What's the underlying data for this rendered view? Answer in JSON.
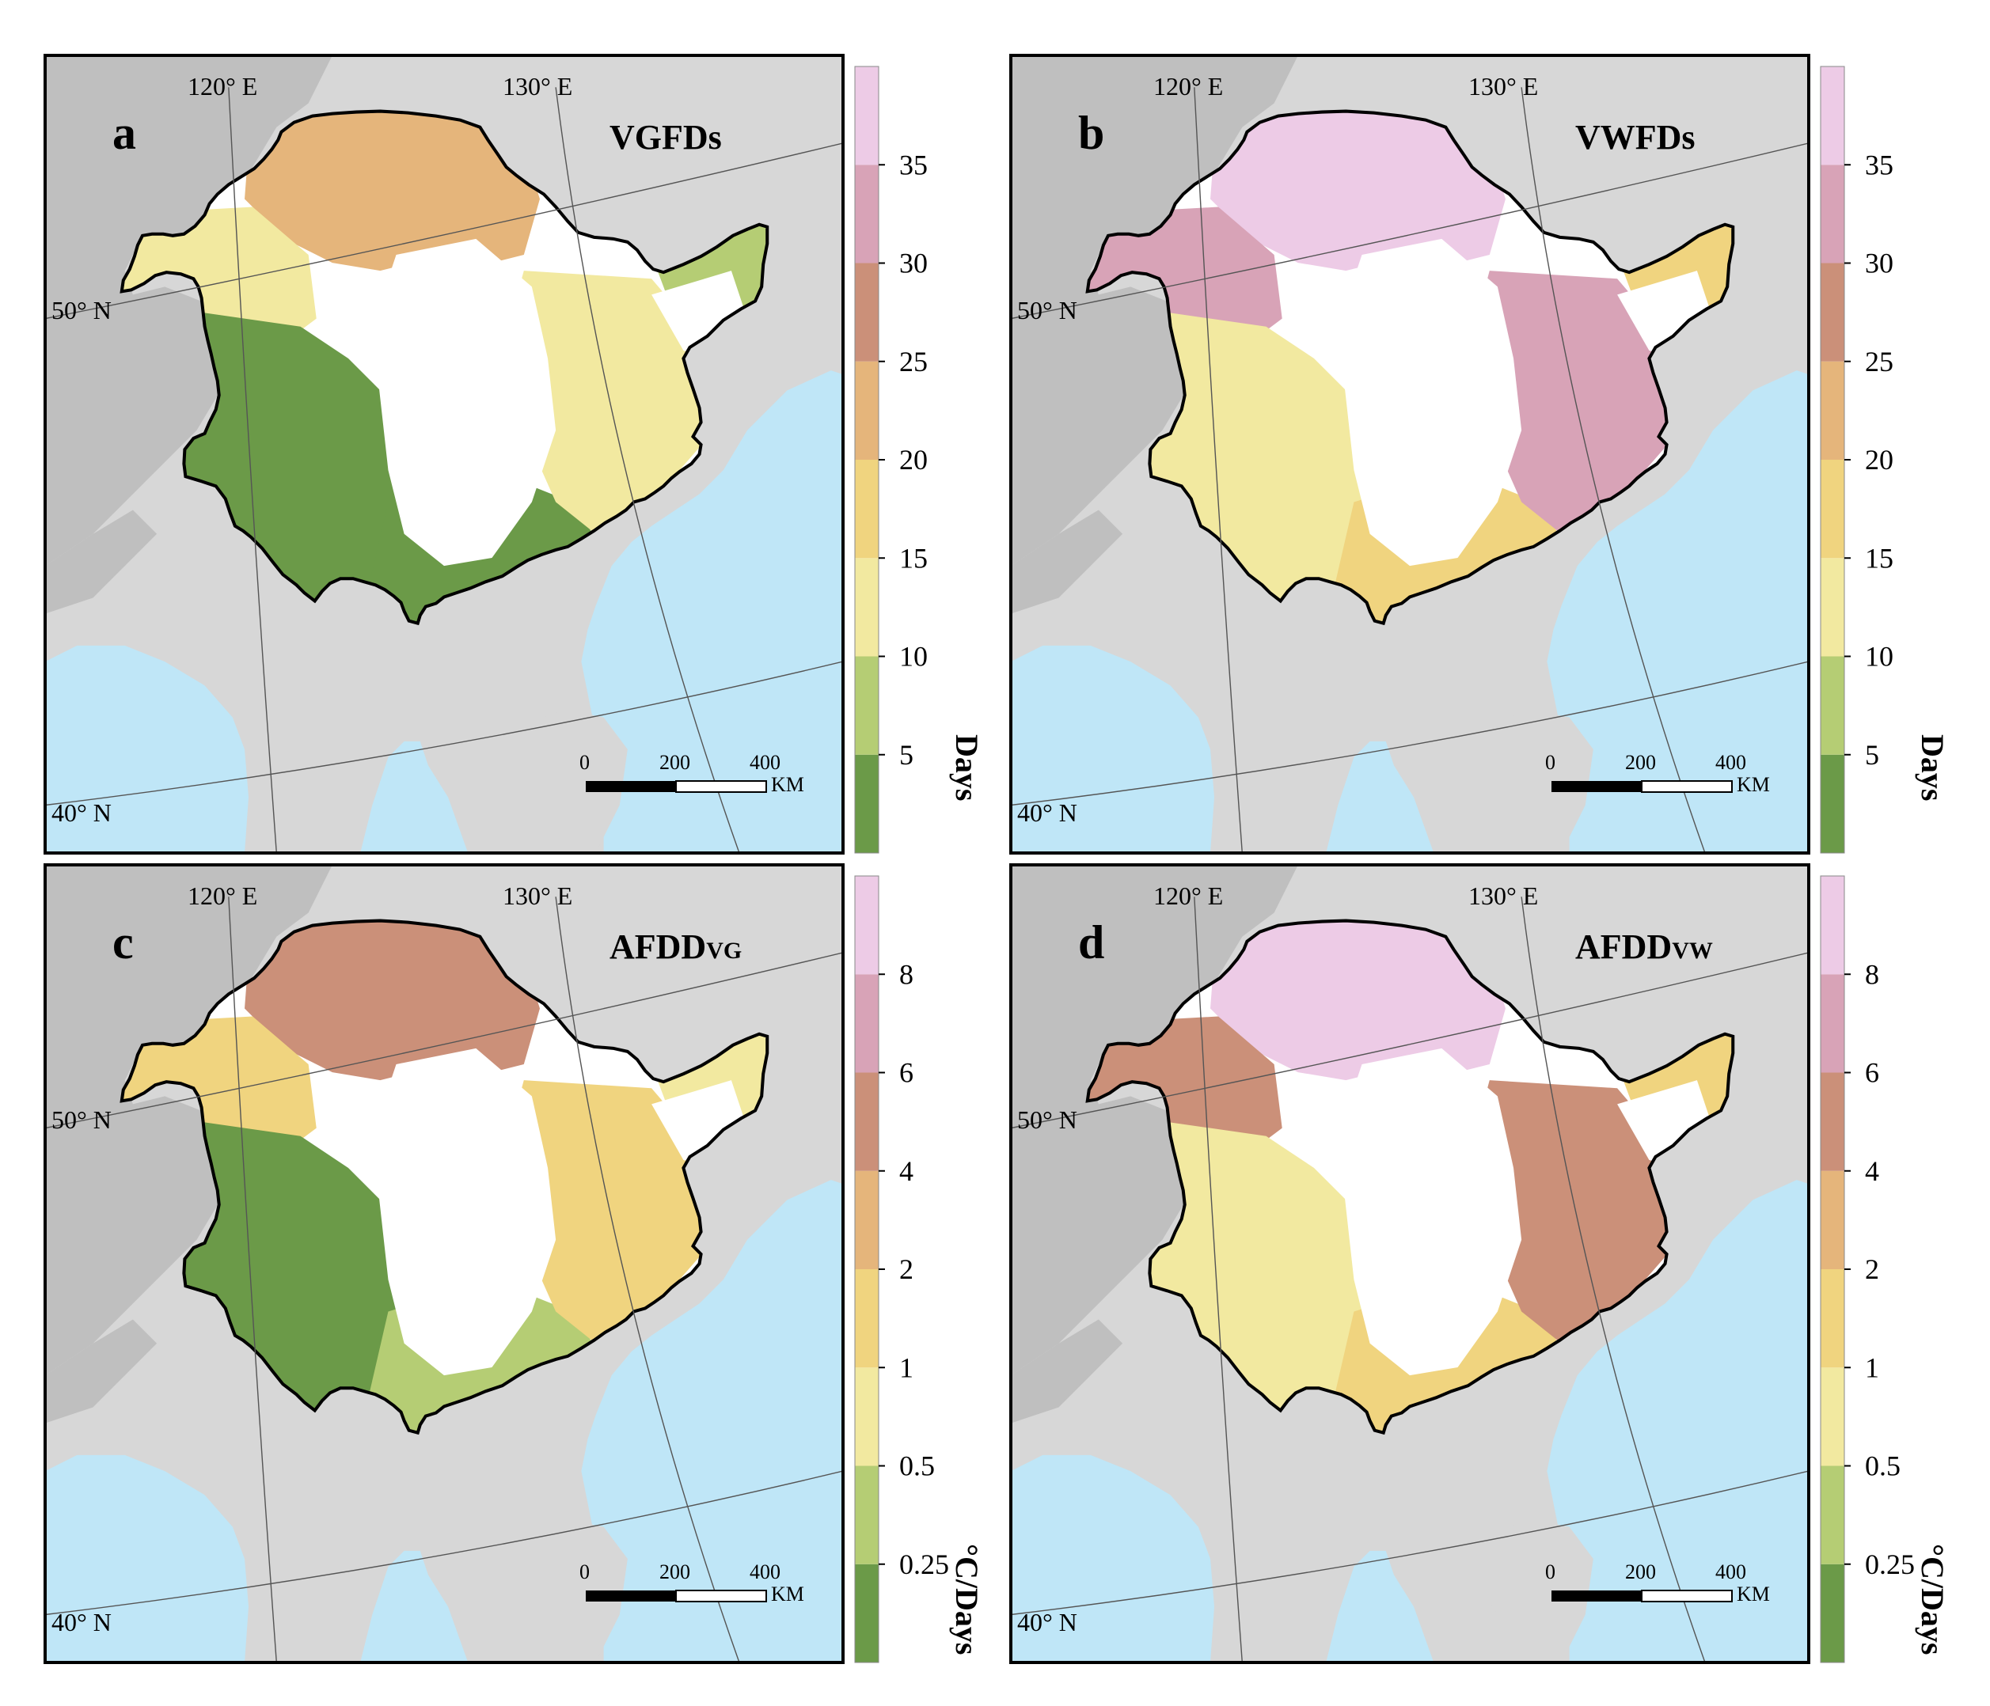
{
  "panels": [
    {
      "letter": "a",
      "title_main": "VGFDs",
      "title_sub": "",
      "lon_labels": [
        "120° E",
        "130° E"
      ],
      "lat_labels": [
        "50° N",
        "40° N"
      ],
      "scalebar": {
        "ticks": [
          "0",
          "200",
          "400"
        ],
        "unit": "KM"
      },
      "legend_ticks": [
        "5",
        "10",
        "15",
        "20",
        "25",
        "30",
        "35"
      ],
      "legend_unit": "Days",
      "scheme": {
        "north": 4,
        "west": 2,
        "central": 0,
        "east": 2,
        "northeast": 1,
        "south": 0
      }
    },
    {
      "letter": "b",
      "title_main": "VWFDs",
      "title_sub": "",
      "lon_labels": [
        "120° E",
        "130° E"
      ],
      "lat_labels": [
        "50° N",
        "40° N"
      ],
      "scalebar": {
        "ticks": [
          "0",
          "200",
          "400"
        ],
        "unit": "KM"
      },
      "legend_ticks": [
        "5",
        "10",
        "15",
        "20",
        "25",
        "30",
        "35"
      ],
      "legend_unit": "Days",
      "scheme": {
        "north": 7,
        "west": 6,
        "central": 2,
        "east": 6,
        "northeast": 3,
        "south": 3
      }
    },
    {
      "letter": "c",
      "title_main": "AFDD",
      "title_sub": "VG",
      "lon_labels": [
        "120° E",
        "130° E"
      ],
      "lat_labels": [
        "50° N",
        "40° N"
      ],
      "scalebar": {
        "ticks": [
          "0",
          "200",
          "400"
        ],
        "unit": "KM"
      },
      "legend_ticks": [
        "0.25",
        "0.5",
        "1",
        "2",
        "4",
        "6",
        "8"
      ],
      "legend_unit": "°C/Days",
      "scheme": {
        "north": 5,
        "west": 3,
        "central": 0,
        "east": 3,
        "northeast": 2,
        "south": 1
      }
    },
    {
      "letter": "d",
      "title_main": "AFDD",
      "title_sub": "VW",
      "lon_labels": [
        "120° E",
        "130° E"
      ],
      "lat_labels": [
        "50° N",
        "40° N"
      ],
      "scalebar": {
        "ticks": [
          "0",
          "200",
          "400"
        ],
        "unit": "KM"
      },
      "legend_ticks": [
        "0.25",
        "0.5",
        "1",
        "2",
        "4",
        "6",
        "8"
      ],
      "legend_unit": "°C/Days",
      "scheme": {
        "north": 7,
        "west": 5,
        "central": 2,
        "east": 5,
        "northeast": 3,
        "south": 3
      }
    }
  ],
  "colors": {
    "classes": [
      "#6b9a48",
      "#b5cd74",
      "#f2e9a0",
      "#f0d47f",
      "#e5b57b",
      "#cb9079",
      "#d8a3b7",
      "#edcbe6"
    ],
    "ocean": "#bfe6f7",
    "land_other": "#d7d7d7",
    "land_mongolia": "#bfbfbf",
    "region_white": "#ffffff",
    "frame": "#000000"
  }
}
